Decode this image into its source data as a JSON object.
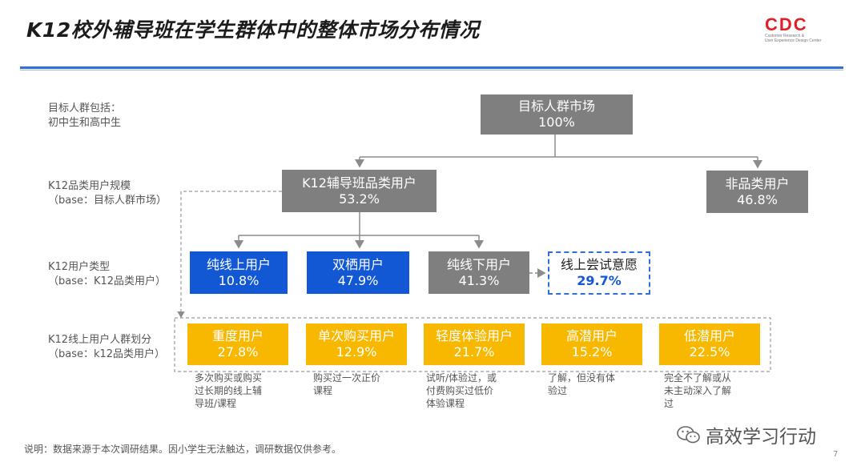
{
  "title": "K12校外辅导班在学生群体中的整体市场分布情况",
  "logo": {
    "text": "CDC",
    "sub1": "Customer Research &",
    "sub2": "User Experience Design Center"
  },
  "row_labels": {
    "target": {
      "line1": "目标人群包括：",
      "line2": "初中生和高中生"
    },
    "scale": {
      "line1": "K12品类用户规模",
      "line2": "（base：目标人群市场）"
    },
    "type": {
      "line1": "K12用户类型",
      "line2": "（base：K12品类用户）"
    },
    "segment": {
      "line1": "K12线上用户人群划分",
      "line2": "（base：k12品类用户）"
    }
  },
  "nodes": {
    "root": {
      "label": "目标人群市场",
      "value": "100%"
    },
    "k12": {
      "label": "K12辅导班品类用户",
      "value": "53.2%"
    },
    "non": {
      "label": "非品类用户",
      "value": "46.8%"
    },
    "online_only": {
      "label": "纯线上用户",
      "value": "10.8%"
    },
    "both": {
      "label": "双栖用户",
      "value": "47.9%"
    },
    "offline_only": {
      "label": "纯线下用户",
      "value": "41.3%"
    },
    "try_online": {
      "label": "线上尝试意愿",
      "value": "29.7%"
    }
  },
  "segments": [
    {
      "label": "重度用户",
      "value": "27.8%",
      "desc": [
        "多次购买或购买",
        "过长期的线上辅",
        "导班/课程"
      ]
    },
    {
      "label": "单次购买用户",
      "value": "12.9%",
      "desc": [
        "购买过一次正价",
        "课程"
      ]
    },
    {
      "label": "轻度体验用户",
      "value": "21.7%",
      "desc": [
        "试听/体验过，或",
        "付费购买过低价",
        "体验课程"
      ]
    },
    {
      "label": "高潜用户",
      "value": "15.2%",
      "desc": [
        "了解，但没有体",
        "验过"
      ]
    },
    {
      "label": "低潜用户",
      "value": "22.5%",
      "desc": [
        "完全不了解或从",
        "未主动深入了解",
        "过"
      ]
    }
  ],
  "footnote": "说明：数据来源于本次调研结果。因小学生无法触达，调研数据仅供参考。",
  "watermark": "高效学习行动",
  "page_number": "7",
  "colors": {
    "gray": "#7f7f7f",
    "blue": "#1258d4",
    "yellow": "#f8b800",
    "accent": "#2e6fd8",
    "logo": "#e01f26"
  }
}
